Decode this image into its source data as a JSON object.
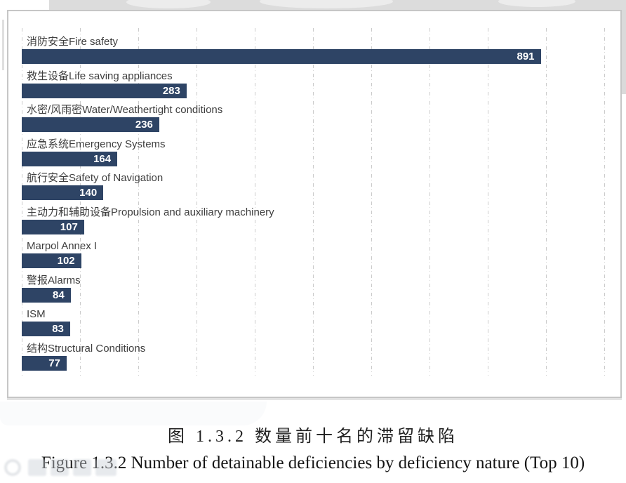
{
  "page": {
    "caption_zh": "图 1.3.2 数量前十名的滞留缺陷",
    "caption_en": "Figure 1.3.2 Number of detainable deficiencies by deficiency nature (Top 10)"
  },
  "chart_data": {
    "type": "bar",
    "orientation": "horizontal",
    "title": "图 1.3.2 数量前十名的滞留缺陷 / Figure 1.3.2 Number of detainable deficiencies by deficiency nature (Top 10)",
    "categories": [
      "消防安全Fire safety",
      "救生设备Life saving appliances",
      "水密/风雨密Water/Weathertight conditions",
      "应急系统Emergency Systems",
      "航行安全Safety of Navigation",
      "主动力和辅助设备Propulsion and auxiliary machinery",
      "Marpol Annex I",
      "警报Alarms",
      "ISM",
      "结构Structural Conditions"
    ],
    "values": [
      891,
      283,
      236,
      164,
      140,
      107,
      102,
      84,
      83,
      77
    ],
    "xlim": [
      0,
      1000
    ],
    "gridline_interval": 100,
    "grid": "dashed-vertical",
    "legend": "none",
    "bar_color": "#2E4465",
    "value_label_color": "#FFFFFF",
    "category_label_color": "#3E3E3E",
    "gridline_color": "#CBCBCB",
    "panel_border_color": "#C6C6C6"
  }
}
